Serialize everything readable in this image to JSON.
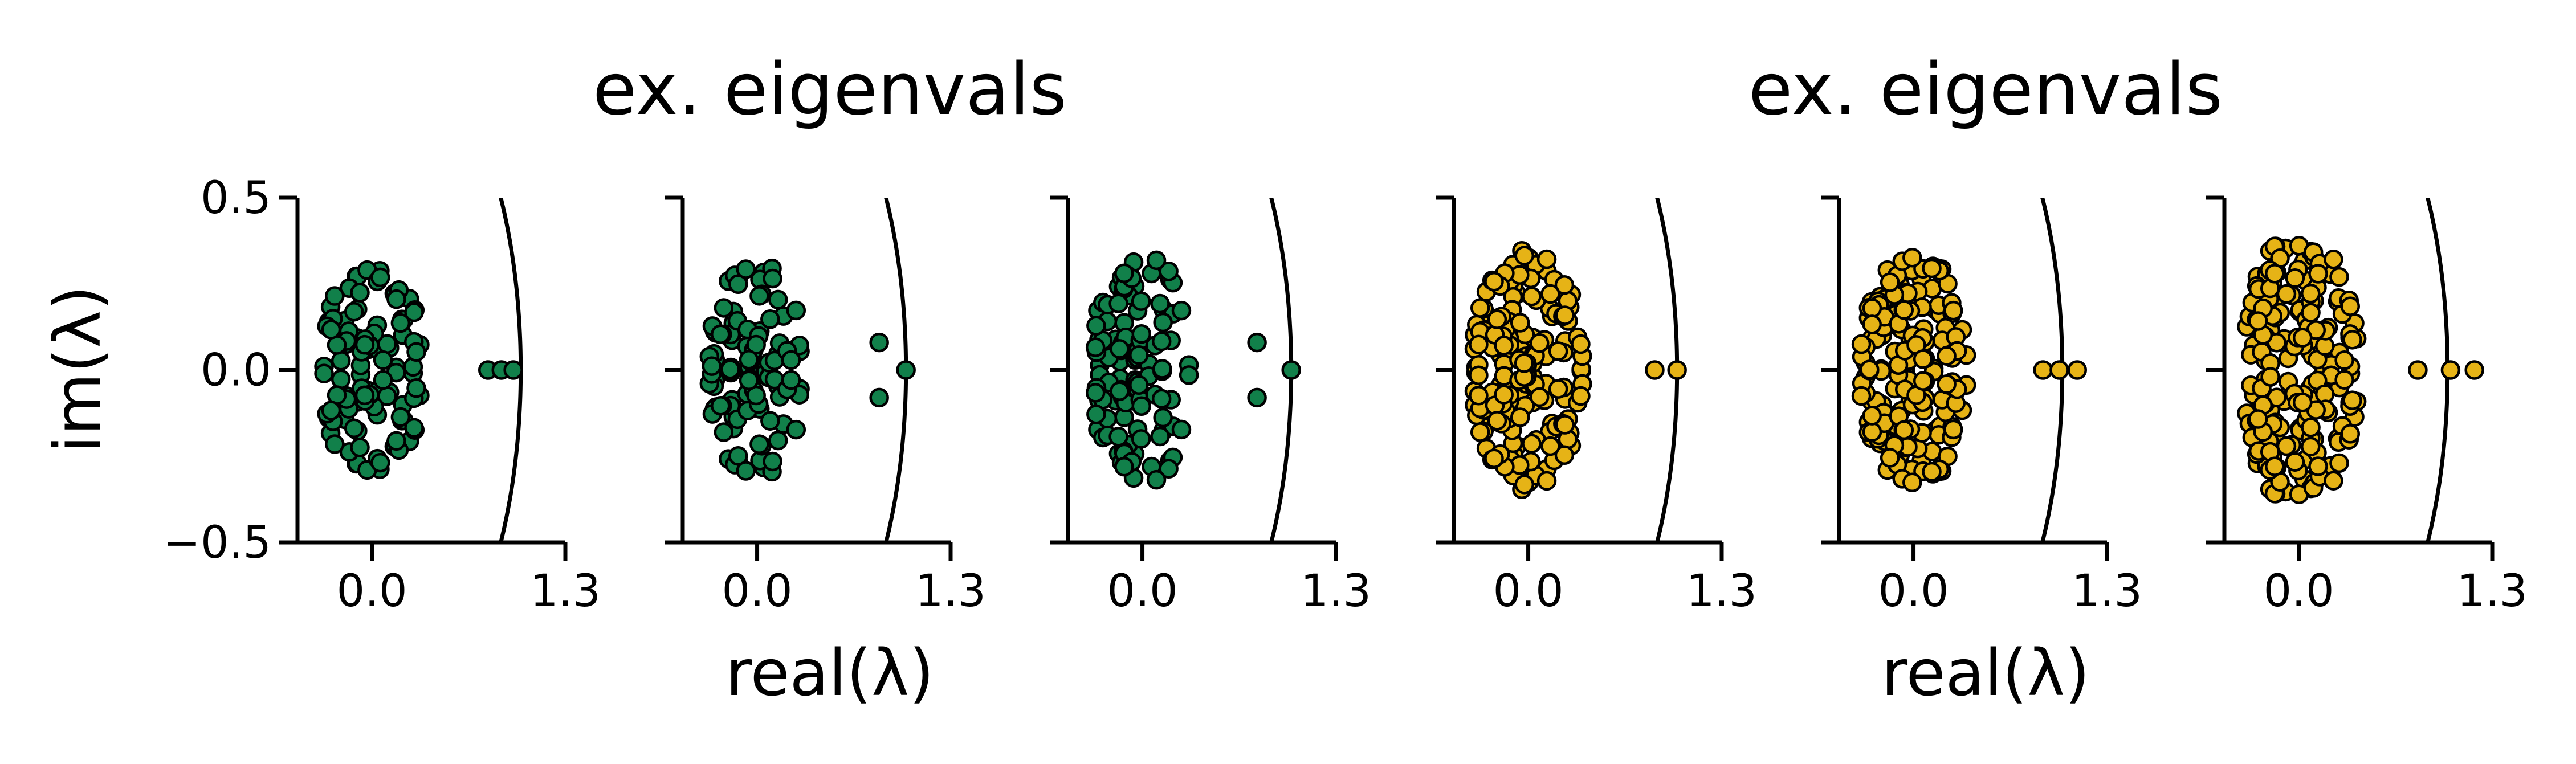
{
  "figure": {
    "titles": [
      "ex. eigenvals",
      "ex. eigenvals"
    ],
    "ylabel": "im(λ)",
    "xlabels": [
      "real(λ)",
      "real(λ)"
    ]
  },
  "chart_data": [
    {
      "type": "scatter",
      "group": 0,
      "color": "#11804a",
      "xlim": [
        -0.5,
        1.3
      ],
      "ylim": [
        -0.5,
        0.5
      ],
      "xticks": [
        "0.0",
        "1.3"
      ],
      "yticks": [
        "0.5",
        "0.0",
        "−0.5"
      ],
      "ytick_labels_shown": true,
      "bulk": {
        "count": 110,
        "half_width": 0.35,
        "half_height": 0.32,
        "seed": 11
      },
      "outliers": [
        [
          0.78,
          0
        ],
        [
          0.87,
          0
        ],
        [
          0.95,
          0
        ]
      ],
      "unit_circle": true
    },
    {
      "type": "scatter",
      "group": 0,
      "color": "#11804a",
      "xlim": [
        -0.5,
        1.3
      ],
      "ylim": [
        -0.5,
        0.5
      ],
      "xticks": [
        "0.0",
        "1.3"
      ],
      "yticks": [
        "0.5",
        "0.0",
        "−0.5"
      ],
      "ytick_labels_shown": false,
      "bulk": {
        "count": 110,
        "half_width": 0.33,
        "half_height": 0.32,
        "seed": 23
      },
      "outliers": [
        [
          0.82,
          0.08
        ],
        [
          0.82,
          -0.08
        ],
        [
          1.0,
          0
        ]
      ],
      "unit_circle": true
    },
    {
      "type": "scatter",
      "group": 0,
      "color": "#11804a",
      "xlim": [
        -0.5,
        1.3
      ],
      "ylim": [
        -0.5,
        0.5
      ],
      "xticks": [
        "0.0",
        "1.3"
      ],
      "yticks": [
        "0.5",
        "0.0",
        "−0.5"
      ],
      "ytick_labels_shown": false,
      "bulk": {
        "count": 110,
        "half_width": 0.36,
        "half_height": 0.33,
        "seed": 37
      },
      "outliers": [
        [
          0.77,
          0.08
        ],
        [
          0.77,
          -0.08
        ],
        [
          1.0,
          0
        ]
      ],
      "unit_circle": true
    },
    {
      "type": "scatter",
      "group": 1,
      "color": "#e6b316",
      "xlim": [
        -0.5,
        1.3
      ],
      "ylim": [
        -0.5,
        0.5
      ],
      "xticks": [
        "0.0",
        "1.3"
      ],
      "yticks": [
        "0.5",
        "0.0",
        "−0.5"
      ],
      "ytick_labels_shown": false,
      "bulk": {
        "count": 180,
        "half_width": 0.38,
        "half_height": 0.35,
        "seed": 41
      },
      "outliers": [
        [
          0.85,
          0
        ],
        [
          1.0,
          0
        ]
      ],
      "unit_circle": true
    },
    {
      "type": "scatter",
      "group": 1,
      "color": "#e6b316",
      "xlim": [
        -0.5,
        1.3
      ],
      "ylim": [
        -0.5,
        0.5
      ],
      "xticks": [
        "0.0",
        "1.3"
      ],
      "yticks": [
        "0.5",
        "0.0",
        "−0.5"
      ],
      "ytick_labels_shown": false,
      "bulk": {
        "count": 180,
        "half_width": 0.36,
        "half_height": 0.35,
        "seed": 53
      },
      "outliers": [
        [
          0.87,
          0
        ],
        [
          0.98,
          0
        ],
        [
          1.1,
          0
        ]
      ],
      "unit_circle": true
    },
    {
      "type": "scatter",
      "group": 1,
      "color": "#e6b316",
      "xlim": [
        -0.5,
        1.3
      ],
      "ylim": [
        -0.5,
        0.5
      ],
      "xticks": [
        "0.0",
        "1.3"
      ],
      "yticks": [
        "0.5",
        "0.0",
        "−0.5"
      ],
      "ytick_labels_shown": false,
      "bulk": {
        "count": 190,
        "half_width": 0.4,
        "half_height": 0.4,
        "seed": 67
      },
      "outliers": [
        [
          0.8,
          0
        ],
        [
          1.02,
          0
        ],
        [
          1.18,
          0
        ]
      ],
      "unit_circle": true
    }
  ]
}
